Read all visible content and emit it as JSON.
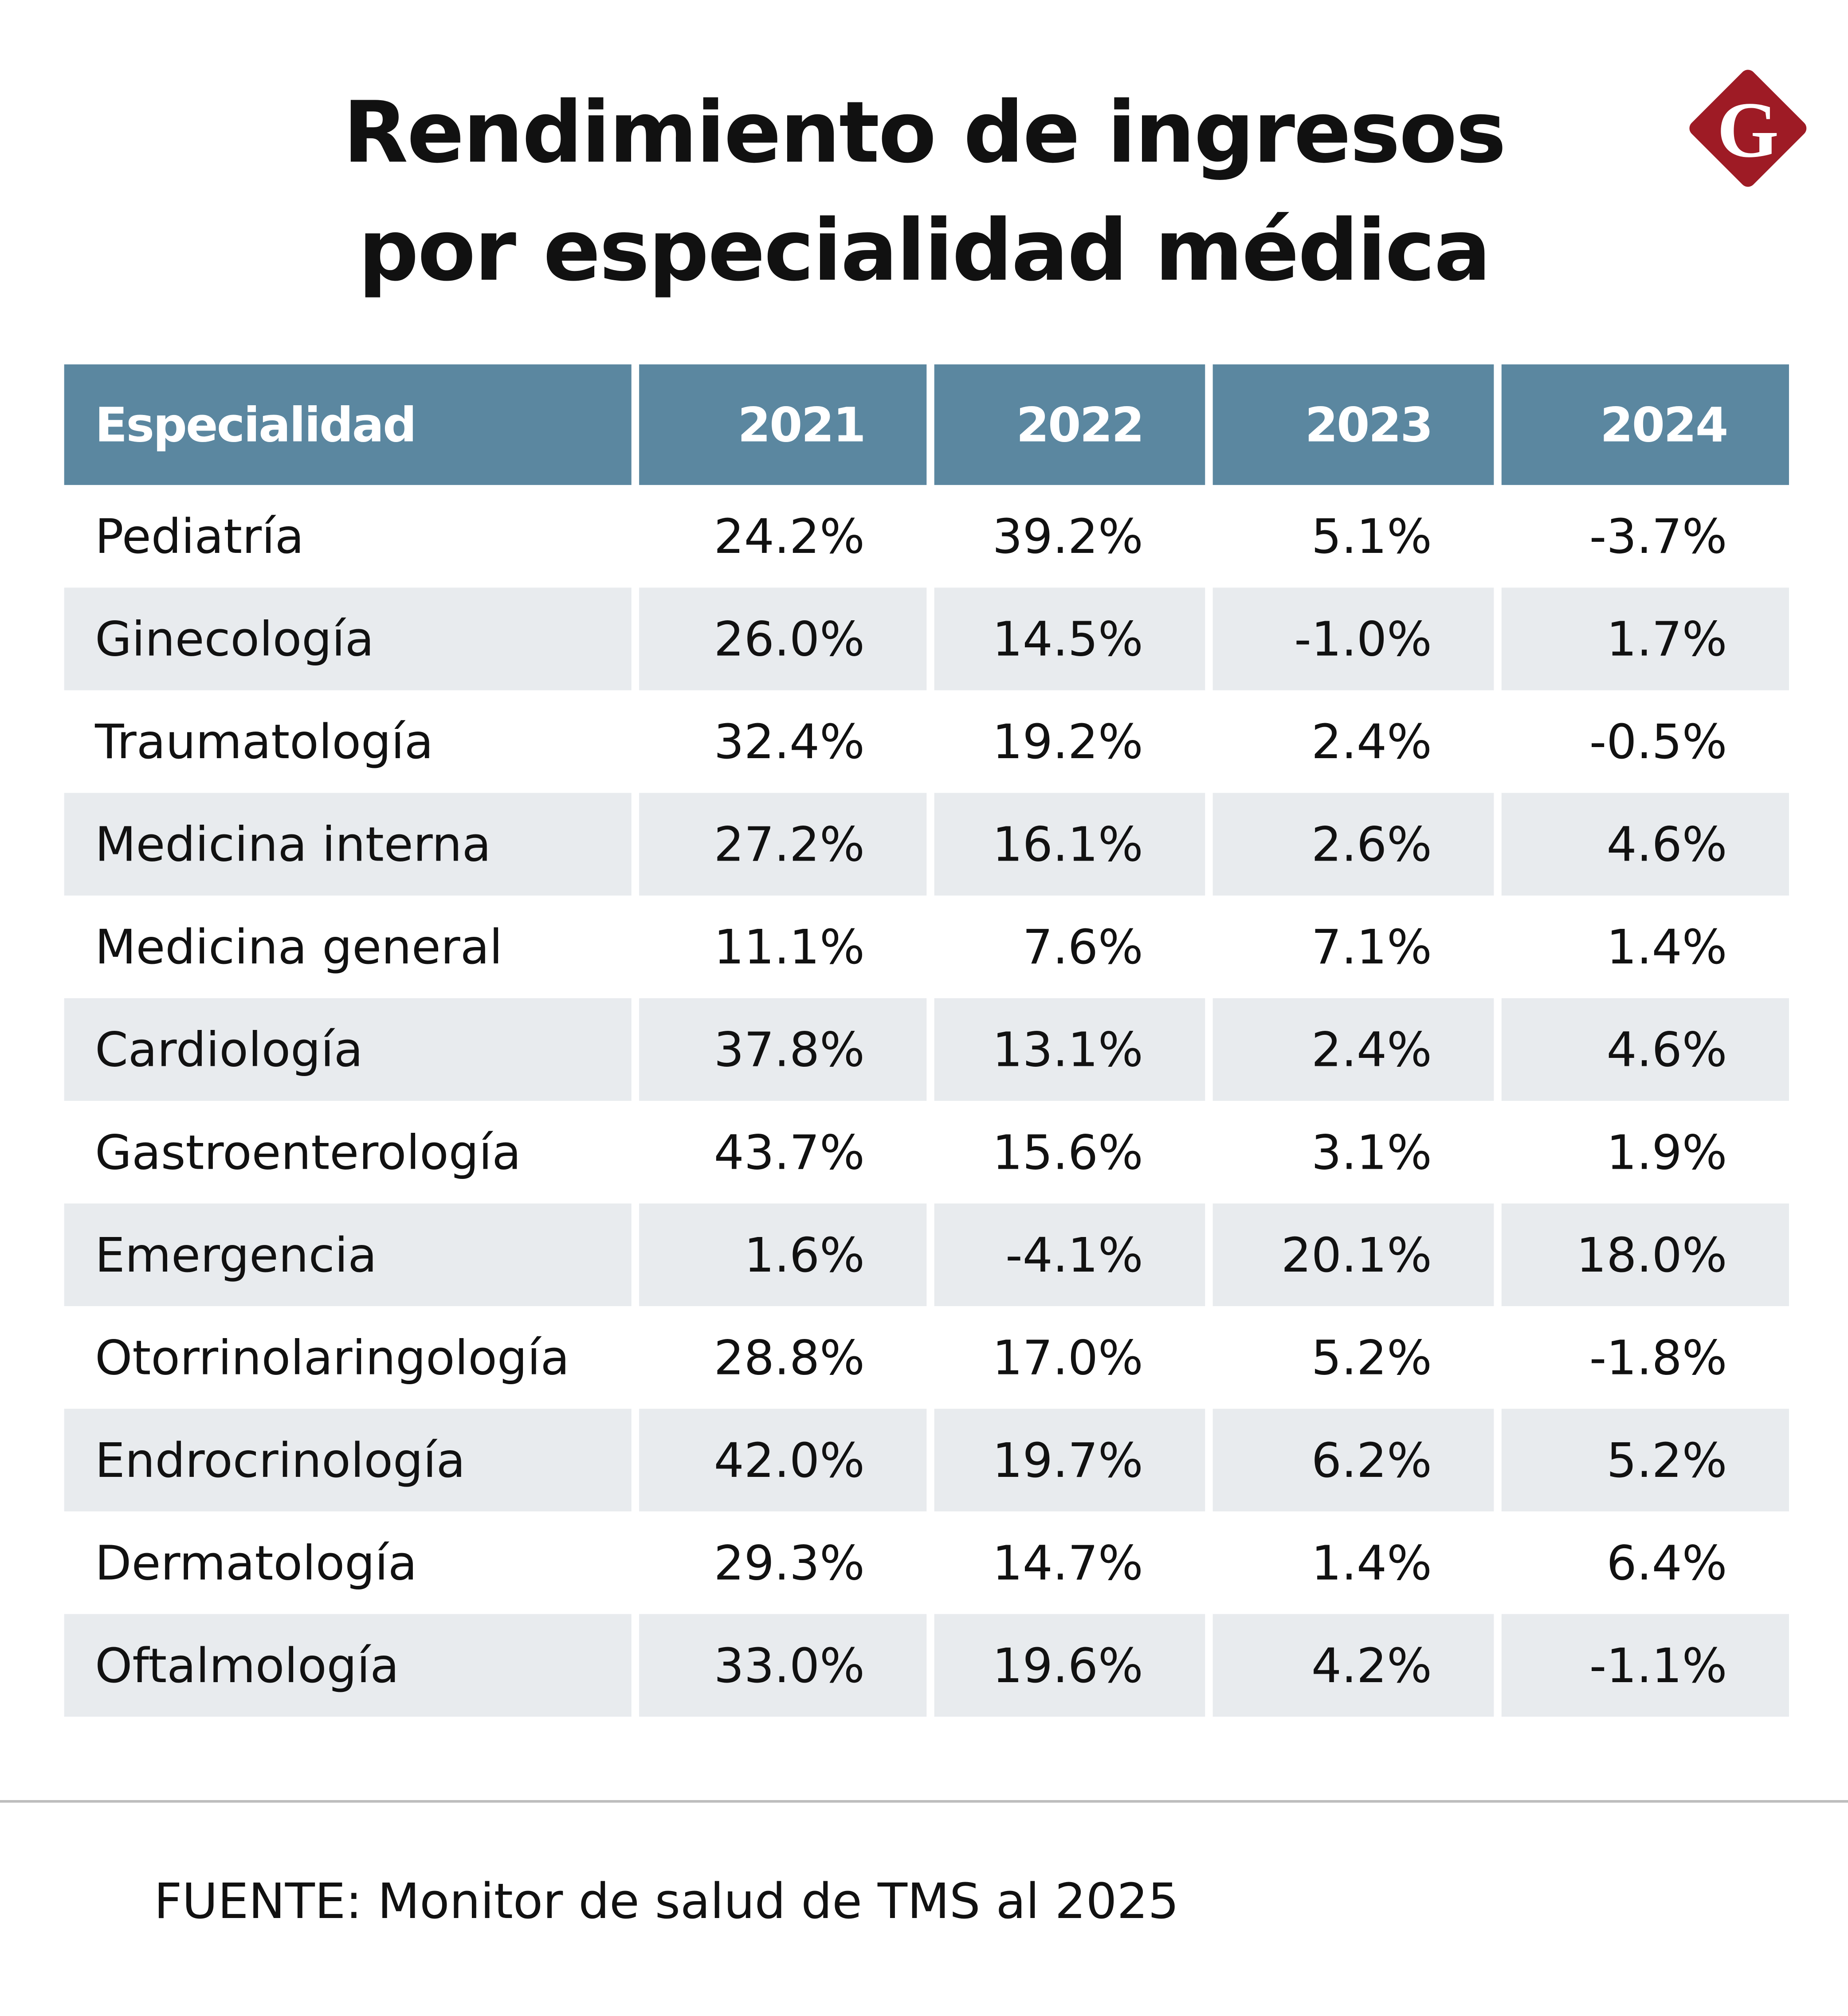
{
  "title": [
    "Rendimiento de ingresos",
    "por especialidad médica"
  ],
  "logo": {
    "letter": "G",
    "color": "#9e1b25"
  },
  "colors": {
    "header": "#5b87a0",
    "alt_row": "#e8ebee"
  },
  "table": {
    "headers": [
      "Especialidad",
      "2021",
      "2022",
      "2023",
      "2024"
    ],
    "rows": [
      [
        "Pediatría",
        "24.2%",
        "39.2%",
        "5.1%",
        "-3.7%"
      ],
      [
        "Ginecología",
        "26.0%",
        "14.5%",
        "-1.0%",
        "1.7%"
      ],
      [
        "Traumatología",
        "32.4%",
        "19.2%",
        "2.4%",
        "-0.5%"
      ],
      [
        "Medicina interna",
        "27.2%",
        "16.1%",
        "2.6%",
        "4.6%"
      ],
      [
        "Medicina general",
        "11.1%",
        "7.6%",
        "7.1%",
        "1.4%"
      ],
      [
        "Cardiología",
        "37.8%",
        "13.1%",
        "2.4%",
        "4.6%"
      ],
      [
        "Gastroenterología",
        "43.7%",
        "15.6%",
        "3.1%",
        "1.9%"
      ],
      [
        "Emergencia",
        "1.6%",
        "-4.1%",
        "20.1%",
        "18.0%"
      ],
      [
        "Otorrinolaringología",
        "28.8%",
        "17.0%",
        "5.2%",
        "-1.8%"
      ],
      [
        "Endrocrinología",
        "42.0%",
        "19.7%",
        "6.2%",
        "5.2%"
      ],
      [
        "Dermatología",
        "29.3%",
        "14.7%",
        "1.4%",
        "6.4%"
      ],
      [
        "Oftalmología",
        "33.0%",
        "19.6%",
        "4.2%",
        "-1.1%"
      ]
    ]
  },
  "source": "FUENTE: Monitor de salud de TMS al 2025"
}
